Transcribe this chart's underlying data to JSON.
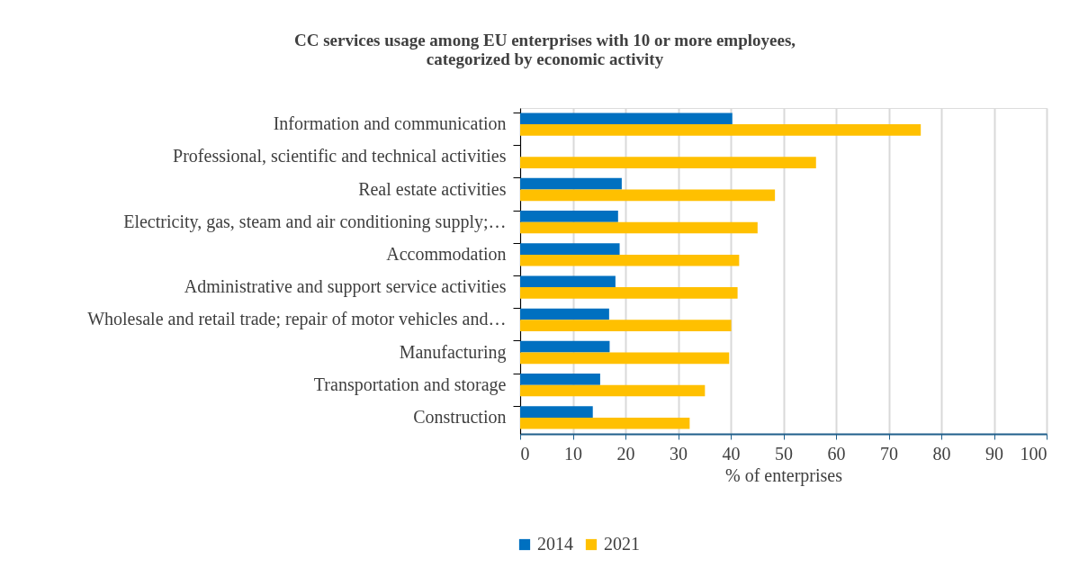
{
  "chart_data": {
    "type": "bar",
    "orientation": "horizontal",
    "title": "CC services usage among EU enterprises with 10 or more employees,\ncategorized by economic activity",
    "xlabel": "% of enterprises",
    "categories": [
      "Information and communication",
      "Professional, scientific and technical activities",
      "Real estate activities",
      "Electricity, gas, steam and air conditioning supply;…",
      "Accommodation",
      "Administrative and support service activities",
      "Wholesale and retail trade; repair of motor vehicles and…",
      "Manufacturing",
      "Transportation and storage",
      "Construction"
    ],
    "series": [
      {
        "name": "2014",
        "color": "#0070c0",
        "values": [
          40.3,
          null,
          19.3,
          18.6,
          18.9,
          18.1,
          16.9,
          17.0,
          15.2,
          13.8
        ]
      },
      {
        "name": "2021",
        "color": "#ffc000",
        "values": [
          76.1,
          56.2,
          48.4,
          45.1,
          41.6,
          41.3,
          40.1,
          39.7,
          35.1,
          32.2
        ]
      }
    ],
    "xlim": [
      0,
      100
    ],
    "xticks": [
      0,
      10,
      20,
      30,
      40,
      50,
      60,
      70,
      80,
      90,
      100
    ],
    "grid": "x",
    "legend": "bottom"
  }
}
